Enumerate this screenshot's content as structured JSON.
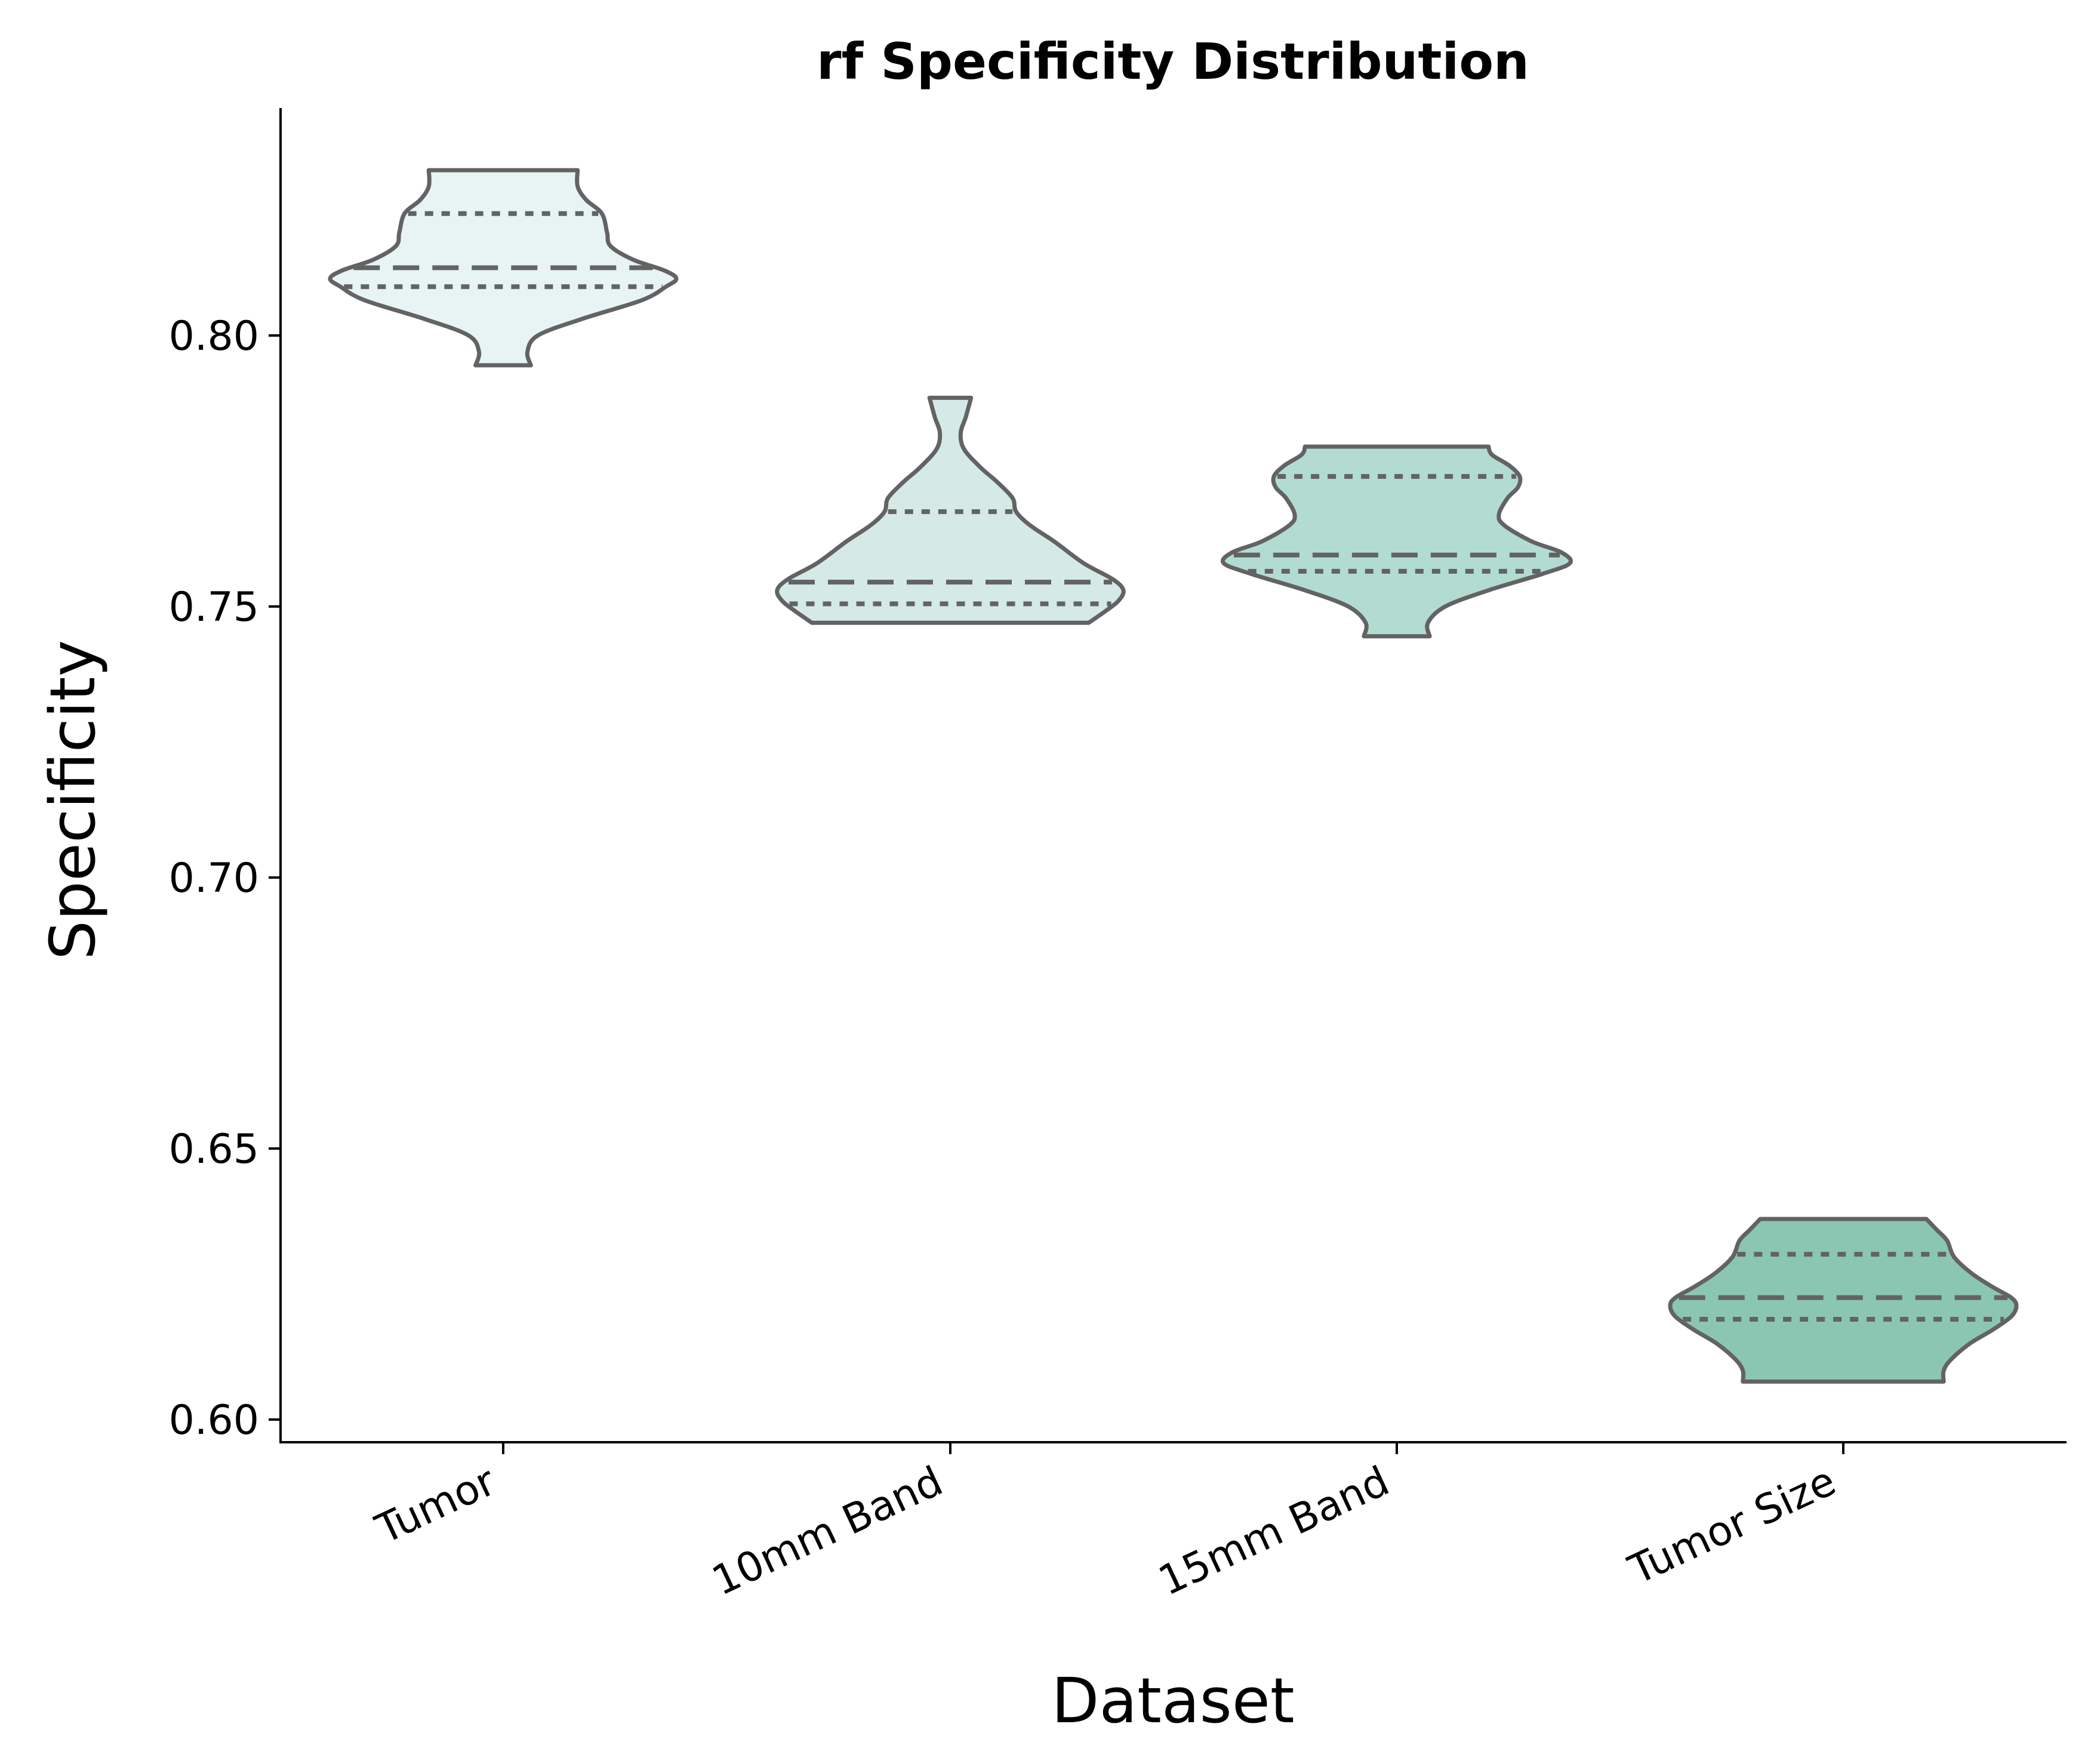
{
  "chart_data": {
    "type": "violin",
    "title": "rf Specificity Distribution",
    "xlabel": "Dataset",
    "ylabel": "Specificity",
    "ylim": [
      0.596,
      0.842
    ],
    "yticks": [
      0.6,
      0.65,
      0.7,
      0.75,
      0.8
    ],
    "ytick_labels": [
      "0.60",
      "0.65",
      "0.70",
      "0.75",
      "0.80"
    ],
    "categories": [
      "Tumor",
      "10mm Band",
      "15mm Band",
      "Tumor Size"
    ],
    "grid": false,
    "inner": "quartile",
    "series": [
      {
        "category": "Tumor",
        "color": "#e8f4f4",
        "min": 0.7945,
        "max": 0.8305,
        "q1": 0.809,
        "median": 0.8125,
        "q3": 0.8225,
        "profile": [
          [
            0.7945,
            0.16
          ],
          [
            0.797,
            0.14
          ],
          [
            0.8,
            0.2
          ],
          [
            0.803,
            0.45
          ],
          [
            0.8065,
            0.8
          ],
          [
            0.809,
            0.94
          ],
          [
            0.8105,
            1.0
          ],
          [
            0.812,
            0.93
          ],
          [
            0.814,
            0.75
          ],
          [
            0.8165,
            0.62
          ],
          [
            0.819,
            0.6
          ],
          [
            0.8225,
            0.57
          ],
          [
            0.825,
            0.48
          ],
          [
            0.8275,
            0.43
          ],
          [
            0.8305,
            0.43
          ]
        ]
      },
      {
        "category": "10mm Band",
        "color": "#d5eae6",
        "min": 0.747,
        "max": 0.7885,
        "q1": 0.7505,
        "median": 0.7545,
        "q3": 0.7675,
        "profile": [
          [
            0.747,
            0.8
          ],
          [
            0.749,
            0.89
          ],
          [
            0.751,
            0.97
          ],
          [
            0.753,
            1.0
          ],
          [
            0.755,
            0.94
          ],
          [
            0.758,
            0.77
          ],
          [
            0.762,
            0.6
          ],
          [
            0.765,
            0.46
          ],
          [
            0.7675,
            0.38
          ],
          [
            0.77,
            0.36
          ],
          [
            0.773,
            0.27
          ],
          [
            0.7755,
            0.18
          ],
          [
            0.779,
            0.08
          ],
          [
            0.782,
            0.06
          ],
          [
            0.785,
            0.09
          ],
          [
            0.7885,
            0.12
          ]
        ]
      },
      {
        "category": "15mm Band",
        "color": "#b2dcd2",
        "min": 0.7445,
        "max": 0.7795,
        "q1": 0.7565,
        "median": 0.7595,
        "q3": 0.774,
        "profile": [
          [
            0.7445,
            0.19
          ],
          [
            0.747,
            0.18
          ],
          [
            0.75,
            0.28
          ],
          [
            0.753,
            0.53
          ],
          [
            0.756,
            0.84
          ],
          [
            0.758,
            1.0
          ],
          [
            0.76,
            0.95
          ],
          [
            0.762,
            0.78
          ],
          [
            0.765,
            0.62
          ],
          [
            0.767,
            0.59
          ],
          [
            0.77,
            0.64
          ],
          [
            0.772,
            0.7
          ],
          [
            0.774,
            0.71
          ],
          [
            0.776,
            0.65
          ],
          [
            0.778,
            0.55
          ],
          [
            0.7795,
            0.53
          ]
        ]
      },
      {
        "category": "Tumor Size",
        "color": "#8bc6b2",
        "min": 0.607,
        "max": 0.637,
        "q1": 0.6185,
        "median": 0.6225,
        "q3": 0.6305,
        "profile": [
          [
            0.607,
            0.58
          ],
          [
            0.609,
            0.58
          ],
          [
            0.611,
            0.62
          ],
          [
            0.614,
            0.73
          ],
          [
            0.6165,
            0.86
          ],
          [
            0.619,
            0.97
          ],
          [
            0.621,
            1.0
          ],
          [
            0.6225,
            0.97
          ],
          [
            0.6245,
            0.86
          ],
          [
            0.627,
            0.74
          ],
          [
            0.63,
            0.64
          ],
          [
            0.633,
            0.6
          ],
          [
            0.635,
            0.54
          ],
          [
            0.637,
            0.48
          ]
        ]
      }
    ],
    "outline_color": "#636363"
  }
}
